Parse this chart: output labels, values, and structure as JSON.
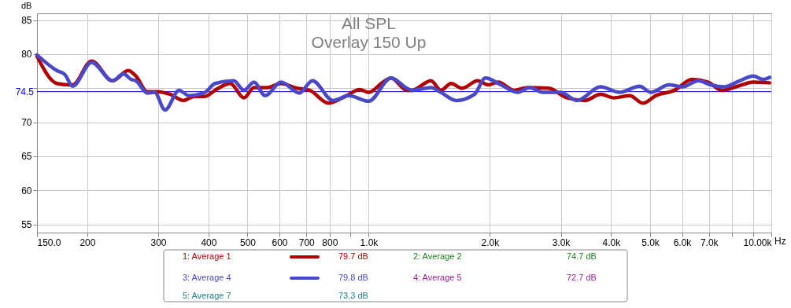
{
  "chart_data": {
    "type": "line",
    "title": "All SPL",
    "subtitle": "Overlay 150 Up",
    "xlabel": "Hz",
    "ylabel": "dB",
    "log": "x",
    "grid": true,
    "legend": "bottom",
    "line_style": "solid",
    "marker": "none",
    "xlim": [
      150,
      10000
    ],
    "ylim": [
      53.8,
      86
    ],
    "xticks": [
      {
        "value": 150,
        "label": "150.0"
      },
      200,
      300,
      400,
      500,
      600,
      700,
      800,
      {
        "value": 900,
        "label": null
      },
      {
        "value": 1000,
        "label": "1.0k"
      },
      {
        "value": 2000,
        "label": "2.0k"
      },
      {
        "value": 3000,
        "label": "3.0k"
      },
      {
        "value": 4000,
        "label": "4.0k"
      },
      {
        "value": 5000,
        "label": "5.0k"
      },
      {
        "value": 6000,
        "label": "6.0k"
      },
      {
        "value": 7000,
        "label": "7.0k"
      },
      {
        "value": 8000,
        "label": null
      },
      {
        "value": 9000,
        "label": null
      },
      {
        "value": 10000,
        "label": "10.00k"
      }
    ],
    "yticks": [
      55,
      60,
      65,
      70,
      {
        "value": 75,
        "label": null
      },
      80,
      85
    ],
    "ref_lines": [
      {
        "axis": "y",
        "value": 74.5,
        "label": "74.5",
        "color": "#0000ff"
      }
    ],
    "series": [
      {
        "name": "1: Average 1",
        "color": "#b00000",
        "x": [
          150,
          168,
          180,
          184,
          205,
          231,
          253,
          264,
          282,
          298,
          322,
          346,
          369,
          392,
          415,
          453,
          490,
          519,
          560,
          606,
          663,
          713,
          794,
          880,
          950,
          1000,
          1086,
          1137,
          1244,
          1279,
          1428,
          1510,
          1602,
          1706,
          1865,
          1980,
          2099,
          2297,
          2481,
          2799,
          3105,
          3444,
          3766,
          4063,
          4450,
          4800,
          5160,
          5750,
          6360,
          6970,
          7530,
          8250,
          9020,
          9900
        ],
        "values": [
          79.7,
          75.7,
          75.5,
          75.5,
          79.0,
          76.1,
          77.6,
          76.8,
          74.5,
          74.5,
          74.1,
          73.2,
          73.8,
          73.8,
          74.7,
          75.7,
          73.6,
          75.1,
          75.1,
          75.7,
          75.0,
          74.7,
          72.8,
          73.9,
          74.8,
          74.4,
          75.9,
          76.5,
          74.7,
          74.7,
          76.1,
          74.7,
          75.7,
          75.0,
          76.1,
          75.5,
          75.9,
          74.7,
          75.1,
          75.0,
          73.6,
          73.2,
          74.1,
          73.6,
          73.9,
          72.8,
          73.9,
          74.7,
          76.3,
          75.9,
          74.7,
          75.3,
          75.9,
          75.8
        ]
      },
      {
        "name": "3: Average 4",
        "color": "#4848c8",
        "x": [
          150,
          168,
          176,
          184,
          205,
          231,
          246,
          257,
          264,
          282,
          294,
          312,
          338,
          358,
          392,
          415,
          462,
          490,
          519,
          553,
          606,
          672,
          725,
          815,
          892,
          1000,
          1137,
          1244,
          1279,
          1428,
          1510,
          1650,
          1830,
          1950,
          2130,
          2340,
          2510,
          2710,
          3000,
          3290,
          3766,
          4200,
          4710,
          5020,
          5570,
          6020,
          6590,
          7070,
          7640,
          8340,
          9020,
          9550,
          9900
        ],
        "values": [
          79.9,
          77.6,
          77.0,
          75.3,
          78.8,
          76.1,
          77.1,
          76.3,
          76.1,
          74.3,
          74.4,
          71.8,
          74.7,
          73.9,
          74.4,
          75.7,
          76.1,
          74.7,
          75.9,
          73.9,
          75.9,
          74.3,
          76.1,
          73.2,
          73.9,
          73.1,
          76.5,
          75.0,
          74.7,
          75.1,
          74.4,
          73.2,
          74.1,
          76.5,
          75.5,
          74.4,
          75.1,
          74.4,
          74.4,
          73.2,
          75.2,
          74.4,
          75.3,
          74.4,
          75.5,
          75.2,
          76.1,
          75.5,
          75.2,
          76.1,
          76.8,
          76.3,
          76.6
        ]
      }
    ],
    "annotations": [
      "79.7 dB",
      "79.8 dB",
      "2: Average 2",
      "74.7 dB",
      "4: Average 5",
      "72.7 dB",
      "5: Average 7",
      "73.3 dB"
    ]
  }
}
